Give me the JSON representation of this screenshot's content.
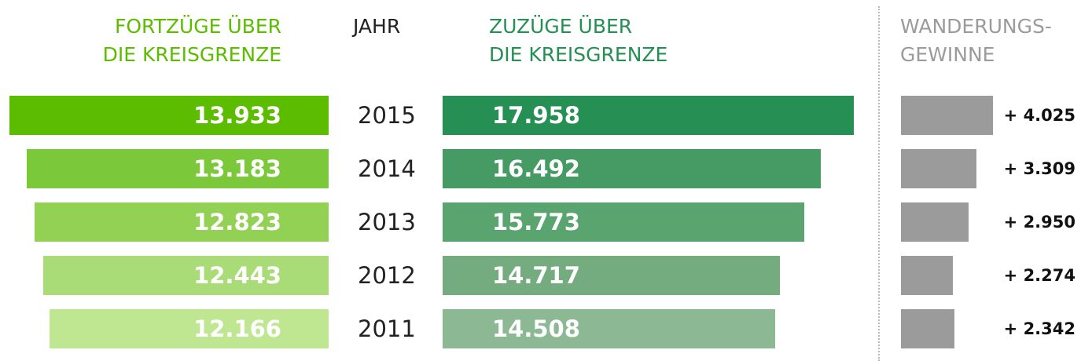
{
  "chart_data": {
    "type": "bar",
    "categories": [
      "2015",
      "2014",
      "2013",
      "2012",
      "2011"
    ],
    "category_label": "JAHR",
    "series": [
      {
        "name": "FORTZÜGE ÜBER\nDIE KREISGRENZE",
        "color": "#5cbd00",
        "colors": [
          "#5cbd00",
          "#7bc83a",
          "#93d155",
          "#a9dc77",
          "#bfe690"
        ],
        "values": [
          13933,
          13183,
          12823,
          12443,
          12166
        ],
        "value_labels": [
          "13.933",
          "13.183",
          "12.823",
          "12.443",
          "12.166"
        ]
      },
      {
        "name": "ZUZÜGE ÜBER\nDIE KREISGRENZE",
        "color": "#268f54",
        "colors": [
          "#268f54",
          "#469b64",
          "#5aa46f",
          "#74ac7f",
          "#8cb893"
        ],
        "values": [
          17958,
          16492,
          15773,
          14717,
          14508
        ],
        "value_labels": [
          "17.958",
          "16.492",
          "15.773",
          "14.717",
          "14.508"
        ]
      },
      {
        "name": "WANDERUNGS-\nGEWINNE",
        "color": "#9b9b9b",
        "colors": [
          "#9b9b9b",
          "#9b9b9b",
          "#9b9b9b",
          "#9b9b9b",
          "#9b9b9b"
        ],
        "values": [
          4025,
          3309,
          2950,
          2274,
          2342
        ],
        "value_labels": [
          "+ 4.025",
          "+ 3.309",
          "+ 2.950",
          "+ 2.274",
          "+ 2.342"
        ]
      }
    ]
  }
}
